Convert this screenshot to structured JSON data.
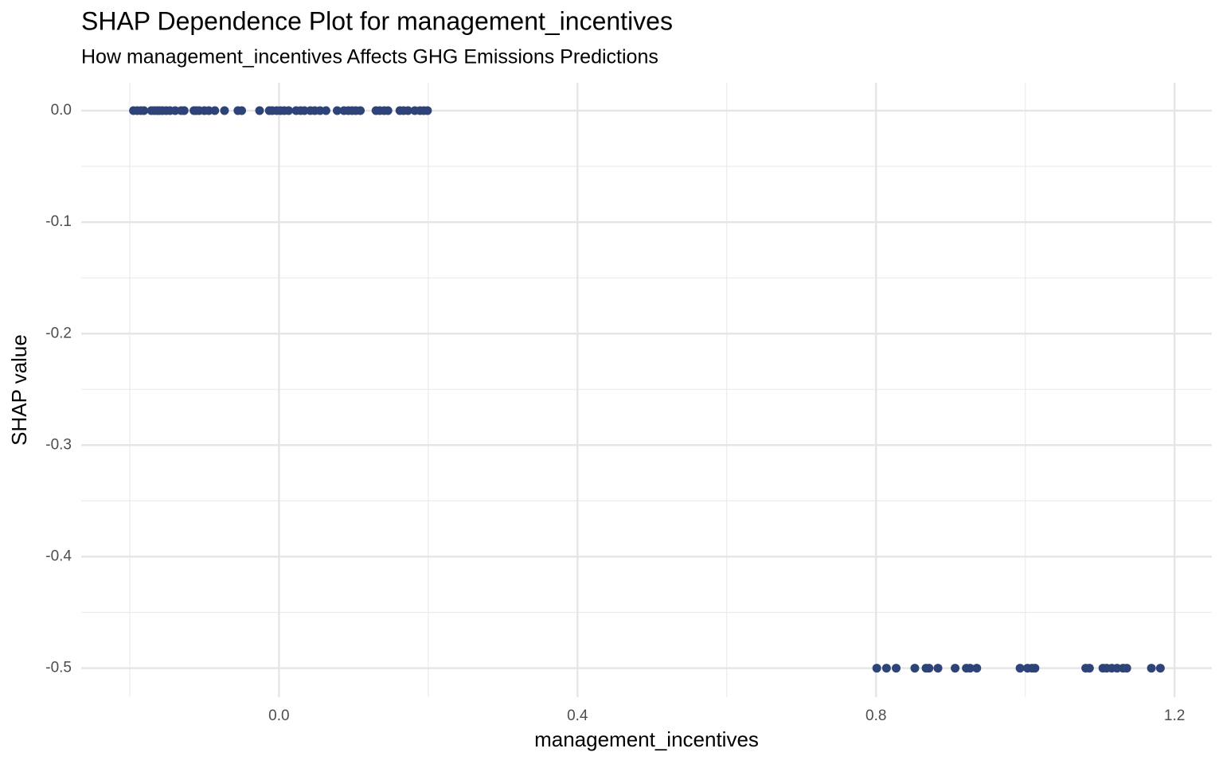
{
  "chart_data": {
    "type": "scatter",
    "title": "SHAP Dependence Plot for management_incentives",
    "subtitle": "How management_incentives Affects GHG Emissions Predictions",
    "x_label": "management_incentives",
    "y_label": "SHAP value",
    "color": "#2e4378",
    "x": [
      -0.195,
      -0.19,
      -0.185,
      -0.181,
      -0.171,
      -0.167,
      -0.163,
      -0.16,
      -0.156,
      -0.151,
      -0.146,
      -0.139,
      -0.131,
      -0.127,
      -0.114,
      -0.111,
      -0.107,
      -0.1,
      -0.094,
      -0.086,
      -0.073,
      -0.055,
      -0.05,
      -0.026,
      -0.013,
      -0.009,
      -0.003,
      0.002,
      0.007,
      0.013,
      0.023,
      0.029,
      0.034,
      0.042,
      0.048,
      0.055,
      0.063,
      0.078,
      0.087,
      0.093,
      0.098,
      0.103,
      0.109,
      0.13,
      0.135,
      0.141,
      0.146,
      0.162,
      0.167,
      0.173,
      0.182,
      0.189,
      0.194,
      0.199,
      0.801,
      0.814,
      0.827,
      0.852,
      0.867,
      0.871,
      0.883,
      0.906,
      0.921,
      0.926,
      0.935,
      0.993,
      1.003,
      1.009,
      1.013,
      1.081,
      1.086,
      1.104,
      1.109,
      1.116,
      1.123,
      1.131,
      1.136,
      1.169,
      1.181
    ],
    "values": [
      0,
      0,
      0,
      0,
      0,
      0,
      0,
      0,
      0,
      0,
      0,
      0,
      0,
      0,
      0,
      0,
      0,
      0,
      0,
      0,
      0,
      0,
      0,
      0,
      0,
      0,
      0,
      0,
      0,
      0,
      0,
      0,
      0,
      0,
      0,
      0,
      0,
      0,
      0,
      0,
      0,
      0,
      0,
      0,
      0,
      0,
      0,
      0,
      0,
      0,
      0,
      0,
      0,
      0,
      -0.5,
      -0.5,
      -0.5,
      -0.5,
      -0.5,
      -0.5,
      -0.5,
      -0.5,
      -0.5,
      -0.5,
      -0.5,
      -0.5,
      -0.5,
      -0.5,
      -0.5,
      -0.5,
      -0.5,
      -0.5,
      -0.5,
      -0.5,
      -0.5,
      -0.5,
      -0.5,
      -0.5,
      -0.5
    ],
    "xlim": [
      -0.265,
      1.25
    ],
    "ylim": [
      -0.526,
      0.025
    ],
    "xticks": [
      {
        "value": 0,
        "label": "0.0"
      },
      0.4,
      0.8,
      1.2
    ],
    "yticks": [
      {
        "value": 0,
        "label": "0.0"
      },
      -0.1,
      -0.2,
      -0.3,
      -0.4,
      -0.5
    ],
    "xminorticks": [
      -0.2,
      0.2,
      0.6,
      1.0
    ],
    "yminorticks": [
      -0.05,
      -0.15,
      -0.25,
      -0.35,
      -0.45
    ],
    "grid": true
  }
}
